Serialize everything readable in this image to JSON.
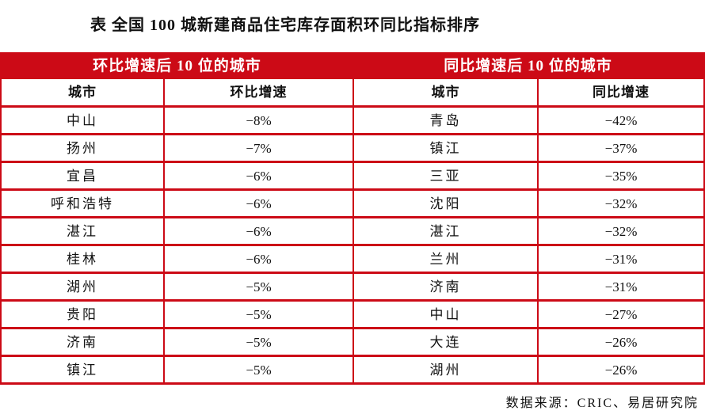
{
  "title": "表 全国 100 城新建商品住宅库存面积环同比指标排序",
  "band": {
    "left": "环比增速后 10 位的城市",
    "right": "同比增速后 10 位的城市"
  },
  "columns": {
    "city_left": "城市",
    "mom": "环比增速",
    "city_right": "城市",
    "yoy": "同比增速"
  },
  "rows": [
    {
      "city_l": "中山",
      "mom": "−8%",
      "city_r": "青岛",
      "yoy": "−42%"
    },
    {
      "city_l": "扬州",
      "mom": "−7%",
      "city_r": "镇江",
      "yoy": "−37%"
    },
    {
      "city_l": "宜昌",
      "mom": "−6%",
      "city_r": "三亚",
      "yoy": "−35%"
    },
    {
      "city_l": "呼和浩特",
      "mom": "−6%",
      "city_r": "沈阳",
      "yoy": "−32%"
    },
    {
      "city_l": "湛江",
      "mom": "−6%",
      "city_r": "湛江",
      "yoy": "−32%"
    },
    {
      "city_l": "桂林",
      "mom": "−6%",
      "city_r": "兰州",
      "yoy": "−31%"
    },
    {
      "city_l": "湖州",
      "mom": "−5%",
      "city_r": "济南",
      "yoy": "−31%"
    },
    {
      "city_l": "贵阳",
      "mom": "−5%",
      "city_r": "中山",
      "yoy": "−27%"
    },
    {
      "city_l": "济南",
      "mom": "−5%",
      "city_r": "大连",
      "yoy": "−26%"
    },
    {
      "city_l": "镇江",
      "mom": "−5%",
      "city_r": "湖州",
      "yoy": "−26%"
    }
  ],
  "footer": "数据来源：CRIC、易居研究院",
  "colors": {
    "accent_red": "#CC0A16",
    "band_text": "#FFFFFF",
    "text": "#111111"
  }
}
